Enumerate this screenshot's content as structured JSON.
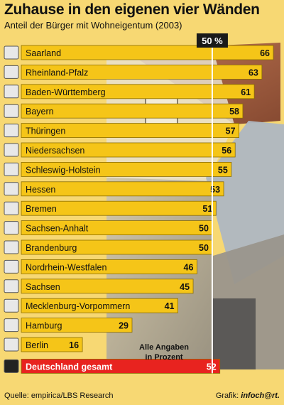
{
  "header": {
    "title": "Zuhause in den eigenen vier Wänden",
    "subtitle": "Anteil der Bürger mit Wohneigentum (2003)"
  },
  "note": {
    "line1": "Alle Angaben",
    "line2": "in Prozent"
  },
  "footer": {
    "source": "Quelle: empirica/LBS Research",
    "credit_prefix": "Grafik: ",
    "credit_brand": "infoch@rt."
  },
  "colors": {
    "bar": "#f5c518",
    "bar_highlight": "#e8231f",
    "marker": "#ffffff",
    "marker_label_bg": "#1a1a1a"
  },
  "chart_data": {
    "type": "bar",
    "orientation": "horizontal",
    "title": "Zuhause in den eigenen vier Wänden",
    "subtitle": "Anteil der Bürger mit Wohneigentum (2003)",
    "unit": "%",
    "reference_line": {
      "value": 50,
      "label": "50 %"
    },
    "categories": [
      "Saarland",
      "Rheinland-Pfalz",
      "Baden-Württemberg",
      "Bayern",
      "Thüringen",
      "Niedersachsen",
      "Schleswig-Holstein",
      "Hessen",
      "Bremen",
      "Sachsen-Anhalt",
      "Brandenburg",
      "Nordrhein-Westfalen",
      "Sachsen",
      "Mecklenburg-Vorpommern",
      "Hamburg",
      "Berlin",
      "Deutschland gesamt"
    ],
    "values": [
      66,
      63,
      61,
      58,
      57,
      56,
      55,
      53,
      51,
      50,
      50,
      46,
      45,
      41,
      29,
      16,
      52
    ],
    "highlight_index": 16,
    "xlim": [
      0,
      66
    ]
  }
}
